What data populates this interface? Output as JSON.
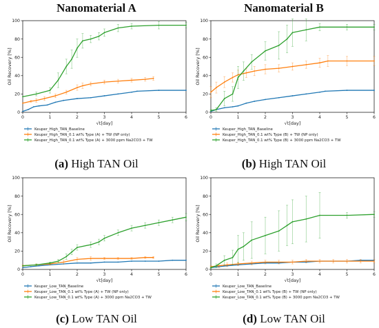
{
  "column_titles": [
    "Nanomaterial A",
    "Nanomaterial B"
  ],
  "captions": [
    {
      "letter": "(a)",
      "text": " High TAN Oil"
    },
    {
      "letter": "(b)",
      "text": " High TAN Oil"
    },
    {
      "letter": "(c)",
      "text": " Low TAN Oil"
    },
    {
      "letter": "(d)",
      "text": " Low TAN Oil"
    }
  ],
  "colors": {
    "baseline": "#1f77b4",
    "np_only": "#ff7f0e",
    "np_na2co3": "#2ca02c"
  },
  "chart_data": [
    {
      "type": "line",
      "xlabel": "√t[day]",
      "ylabel": "Oil Recovery [%]",
      "xlim": [
        0,
        6
      ],
      "ylim": [
        0,
        100
      ],
      "xticks": [
        0,
        1,
        2,
        3,
        4,
        5,
        6
      ],
      "yticks": [
        0,
        20,
        40,
        60,
        80,
        100
      ],
      "grid": false,
      "legend_position": "below",
      "series": [
        {
          "name": "Keuper_High_TAN_Baseline",
          "color": "#1f77b4",
          "x": [
            0,
            0.2,
            0.4,
            0.6,
            0.9,
            1.2,
            1.5,
            2.0,
            2.5,
            3.0,
            3.5,
            4.0,
            4.2,
            5.0,
            6.0
          ],
          "y": [
            1,
            3,
            6,
            7,
            8,
            11,
            13,
            15,
            16,
            18,
            20,
            22,
            23,
            24,
            24
          ]
        },
        {
          "name": "Keuper_High_TAN_0.1 wt% Type (A) + TW (NP only)",
          "color": "#ff7f0e",
          "x": [
            0,
            0.3,
            0.5,
            0.8,
            1.2,
            1.6,
            2.0,
            2.2,
            2.5,
            3.0,
            3.5,
            4.0,
            4.5,
            4.8
          ],
          "y": [
            10,
            12,
            13,
            15,
            18,
            22,
            27,
            29,
            31,
            33,
            34,
            35,
            36,
            37
          ],
          "err": [
            0,
            1,
            2,
            2,
            2,
            2,
            3,
            3,
            2,
            2,
            2,
            2,
            2,
            2
          ]
        },
        {
          "name": "Keuper_High_TAN_0.1 wt% Type (A) + 3000 ppm Na2CO3 + TW",
          "color": "#2ca02c",
          "x": [
            0,
            0.5,
            1.0,
            1.3,
            1.6,
            1.8,
            2.0,
            2.2,
            2.5,
            2.8,
            3.0,
            3.5,
            4.0,
            5.0,
            6.0
          ],
          "y": [
            17,
            20,
            24,
            35,
            50,
            58,
            70,
            78,
            80,
            83,
            87,
            92,
            94,
            95,
            95
          ],
          "err": [
            0,
            2,
            3,
            8,
            8,
            10,
            10,
            8,
            4,
            4,
            4,
            4,
            3,
            4,
            3
          ]
        }
      ]
    },
    {
      "type": "line",
      "xlabel": "√t[day]",
      "ylabel": "Oil Recovery [%]",
      "xlim": [
        0,
        6
      ],
      "ylim": [
        0,
        100
      ],
      "xticks": [
        0,
        1,
        2,
        3,
        4,
        5,
        6
      ],
      "yticks": [
        0,
        20,
        40,
        60,
        80,
        100
      ],
      "grid": false,
      "legend_position": "below",
      "series": [
        {
          "name": "Keuper_High_TAN_Baseline",
          "color": "#1f77b4",
          "x": [
            0,
            0.2,
            0.5,
            0.8,
            1.0,
            1.3,
            1.6,
            2.0,
            2.5,
            3.0,
            3.5,
            4.0,
            4.2,
            5.0,
            6.0
          ],
          "y": [
            1,
            3,
            5,
            6,
            7,
            10,
            12,
            14,
            16,
            18,
            20,
            22,
            23,
            24,
            24
          ]
        },
        {
          "name": "Keuper_High_TAN_0.1 wt% Type (B) + TW (NP only)",
          "color": "#ff7f0e",
          "x": [
            0,
            0.2,
            0.5,
            0.8,
            1.0,
            1.3,
            1.6,
            2.0,
            2.5,
            3.0,
            3.5,
            4.0,
            4.3,
            5.0,
            6.0
          ],
          "y": [
            22,
            27,
            33,
            38,
            41,
            43,
            45,
            47,
            48,
            50,
            52,
            54,
            56,
            56,
            56
          ],
          "err": [
            6,
            6,
            6,
            5,
            5,
            5,
            5,
            5,
            4,
            4,
            4,
            5,
            6,
            5,
            5
          ]
        },
        {
          "name": "Keuper_High_TAN_0.1 wt% Type (B) + 3000 ppm Na2CO3 + TW",
          "color": "#2ca02c",
          "x": [
            0,
            0.2,
            0.5,
            0.8,
            1.0,
            1.2,
            1.5,
            2.0,
            2.5,
            2.8,
            3.0,
            3.5,
            4.0,
            5.0,
            6.0
          ],
          "y": [
            2,
            3,
            15,
            20,
            38,
            45,
            55,
            67,
            73,
            80,
            87,
            90,
            93,
            93,
            93
          ],
          "err": [
            1,
            2,
            8,
            8,
            12,
            10,
            8,
            10,
            15,
            15,
            15,
            12,
            4,
            3,
            3
          ]
        }
      ]
    },
    {
      "type": "line",
      "xlabel": "√t[day]",
      "ylabel": "Oil Recovery [%]",
      "xlim": [
        0,
        6
      ],
      "ylim": [
        0,
        100
      ],
      "xticks": [
        0,
        1,
        2,
        3,
        4,
        5,
        6
      ],
      "yticks": [
        0,
        20,
        40,
        60,
        80,
        100
      ],
      "grid": false,
      "legend_position": "below",
      "series": [
        {
          "name": "Keuper_Low_TAN_Baseline",
          "color": "#1f77b4",
          "x": [
            0,
            0.3,
            0.6,
            1.0,
            1.5,
            2.0,
            2.5,
            3.0,
            3.5,
            4.0,
            4.5,
            5.0,
            5.5,
            6.0
          ],
          "y": [
            2,
            3,
            4,
            5,
            6,
            7,
            7,
            8,
            8,
            9,
            9,
            9,
            10,
            10
          ]
        },
        {
          "name": "Keuper_Low_TAN_0.1 wt% Type (A) + TW (NP only)",
          "color": "#ff7f0e",
          "x": [
            0,
            0.5,
            1.0,
            1.5,
            2.0,
            2.5,
            3.0,
            3.5,
            4.0,
            4.5,
            4.8
          ],
          "y": [
            4,
            5,
            6,
            8,
            11,
            12,
            12,
            12,
            12,
            13,
            13
          ],
          "err": [
            1,
            1,
            1,
            2,
            2,
            2,
            1,
            1,
            1,
            1,
            1
          ]
        },
        {
          "name": "Keuper_Low_TAN_0.1 wt% Type (A) + 3000 ppm Na2CO3 + TW",
          "color": "#2ca02c",
          "x": [
            0,
            0.5,
            1.0,
            1.3,
            1.6,
            1.8,
            2.0,
            2.5,
            2.8,
            3.0,
            3.5,
            4.0,
            4.5,
            5.0,
            5.5,
            6.0
          ],
          "y": [
            4,
            5,
            7,
            9,
            14,
            19,
            24,
            27,
            30,
            34,
            40,
            45,
            48,
            51,
            54,
            57
          ],
          "err": [
            0,
            1,
            1,
            2,
            3,
            3,
            3,
            3,
            3,
            3,
            3,
            3,
            3,
            3,
            3,
            4
          ]
        }
      ]
    },
    {
      "type": "line",
      "xlabel": "√t[day]",
      "ylabel": "Oil Recovery [%]",
      "xlim": [
        0,
        6
      ],
      "ylim": [
        0,
        100
      ],
      "xticks": [
        0,
        1,
        2,
        3,
        4,
        5,
        6
      ],
      "yticks": [
        0,
        20,
        40,
        60,
        80,
        100
      ],
      "grid": false,
      "legend_position": "below",
      "series": [
        {
          "name": "Keuper_Low_TAN_Baseline",
          "color": "#1f77b4",
          "x": [
            0,
            0.3,
            0.6,
            1.0,
            1.5,
            2.0,
            2.5,
            3.0,
            3.5,
            4.0,
            4.5,
            5.0,
            5.5,
            6.0
          ],
          "y": [
            2,
            3,
            4,
            5,
            6,
            7,
            7,
            8,
            8,
            9,
            9,
            9,
            10,
            10
          ]
        },
        {
          "name": "Keuper_Low_TAN_0.1 wt% Type (B) + TW (NP only)",
          "color": "#ff7f0e",
          "x": [
            0,
            0.3,
            0.6,
            1.0,
            1.5,
            2.0,
            2.5,
            3.0,
            3.5,
            4.0,
            4.5,
            5.0,
            5.5,
            6.0
          ],
          "y": [
            3,
            4,
            5,
            6,
            7,
            8,
            8,
            8,
            9,
            9,
            9,
            9,
            9,
            9
          ],
          "err": [
            1,
            2,
            2,
            2,
            2,
            2,
            2,
            2,
            2,
            2,
            2,
            2,
            2,
            2
          ]
        },
        {
          "name": "Keuper_Low_TAN_0.1 wt% Type (B) + 3000 ppm Na2CO3 + TW",
          "color": "#2ca02c",
          "x": [
            0,
            0.2,
            0.5,
            0.8,
            1.0,
            1.2,
            1.5,
            2.0,
            2.5,
            2.8,
            3.0,
            3.5,
            4.0,
            5.0,
            6.0
          ],
          "y": [
            2,
            4,
            10,
            13,
            22,
            25,
            32,
            37,
            42,
            48,
            52,
            55,
            59,
            59,
            60
          ],
          "err": [
            1,
            2,
            5,
            8,
            15,
            15,
            20,
            20,
            22,
            22,
            24,
            25,
            25,
            3,
            3
          ]
        }
      ]
    }
  ]
}
